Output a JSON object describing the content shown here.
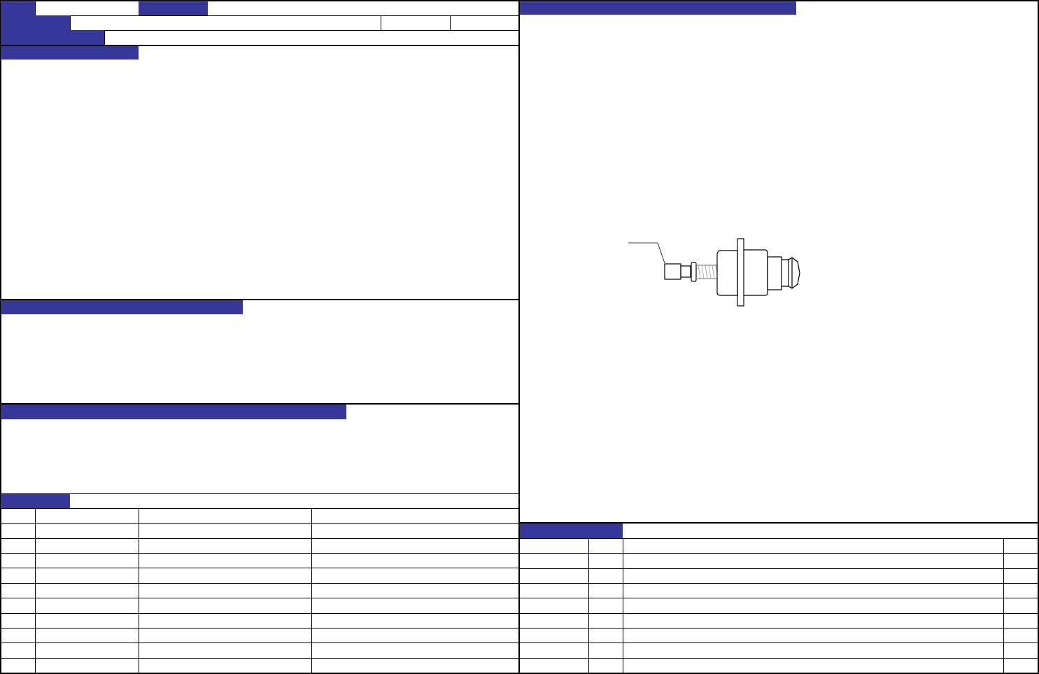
{
  "colors": {
    "header_fill": "#373699",
    "border": "#000000",
    "background": "#ffffff"
  },
  "drawing": {
    "icon": "valve-fitting-drawing"
  }
}
